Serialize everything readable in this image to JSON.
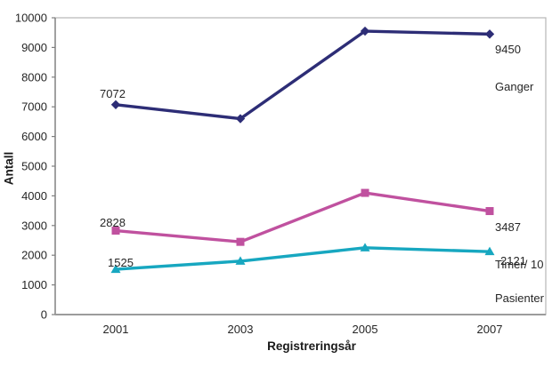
{
  "chart_data": {
    "type": "line",
    "title": "",
    "xlabel": "Registreringsår",
    "ylabel": "Antall",
    "categories": [
      "2001",
      "2003",
      "2005",
      "2007"
    ],
    "yticks": [
      0,
      1000,
      2000,
      3000,
      4000,
      5000,
      6000,
      7000,
      8000,
      9000,
      10000
    ],
    "ylim": [
      0,
      10000
    ],
    "grid": false,
    "legend_position": "end-of-line-labels",
    "series": [
      {
        "key": "ganger",
        "name": "Ganger",
        "marker": "diamond",
        "color": "#2D2D76",
        "values": [
          7072,
          6600,
          9550,
          9450
        ],
        "start_label": "7072",
        "end_label": "9450"
      },
      {
        "key": "timer",
        "name": "Timer/ 10",
        "marker": "square",
        "color": "#C0519F",
        "values": [
          2828,
          2450,
          4100,
          3487
        ],
        "start_label": "2828",
        "end_label": "3487"
      },
      {
        "key": "pasienter",
        "name": "Pasienter",
        "marker": "triangle",
        "color": "#17A7C0",
        "values": [
          1525,
          1800,
          2250,
          2121
        ],
        "start_label": "1525",
        "end_label": "2121"
      }
    ],
    "axis_colors": {
      "frame": "#b6b6b6",
      "y_axis": "#7f7f7f",
      "x_axis": "#9c9c9c",
      "tick": "#7f7f7f"
    }
  }
}
